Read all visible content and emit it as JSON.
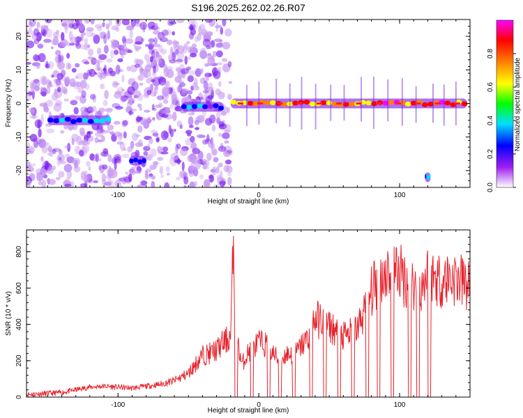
{
  "title": "S196.2025.262.02.26.R07",
  "chart_data": [
    {
      "type": "heatmap",
      "xlabel": "Height of straight line (km)",
      "ylabel": "Frequency (Hz)",
      "xlim": [
        -165,
        150
      ],
      "ylim": [
        -25,
        25
      ],
      "xticks": [
        -100,
        0,
        100
      ],
      "yticks": [
        -20,
        -10,
        0,
        10,
        20
      ],
      "colorbar": {
        "label": "Normalized spectral amplitude",
        "range": [
          0,
          1
        ],
        "ticks": [
          "0.0",
          "0.2",
          "0.4",
          "0.6",
          "0.8"
        ],
        "colors": [
          "#ffffff",
          "#a020f0",
          "#0000ff",
          "#00e0ff",
          "#00ff00",
          "#ffff00",
          "#ff8000",
          "#ff0000",
          "#ff00ff"
        ]
      },
      "features": [
        {
          "name": "broadband noise",
          "x_range": [
            -165,
            -20
          ],
          "freq_range": [
            -25,
            25
          ],
          "amplitude": 0.15
        },
        {
          "name": "early tone",
          "x_range": [
            -150,
            -105
          ],
          "freq": -5,
          "amplitude": 0.35
        },
        {
          "name": "low burst",
          "x_range": [
            -92,
            -80
          ],
          "freq": -17,
          "amplitude": 0.35
        },
        {
          "name": "mid tone",
          "x_range": [
            -55,
            -25
          ],
          "freq": -1,
          "amplitude": 0.3
        },
        {
          "name": "main carrier",
          "x_range": [
            -20,
            148
          ],
          "freq": 0,
          "amplitude": 0.9
        },
        {
          "name": "spur",
          "x_range": [
            118,
            122
          ],
          "freq": -22,
          "amplitude": 0.4
        }
      ]
    },
    {
      "type": "line",
      "xlabel": "Height of straight line (km)",
      "ylabel": "SNR (10 * v/v)",
      "xlim": [
        -165,
        150
      ],
      "ylim": [
        0,
        920
      ],
      "xticks": [
        -100,
        0,
        100
      ],
      "yticks": [
        0,
        200,
        400,
        600,
        800
      ],
      "color": "#e8202a",
      "series": [
        {
          "name": "SNR",
          "x": [
            -165,
            -150,
            -140,
            -130,
            -120,
            -110,
            -100,
            -90,
            -80,
            -70,
            -60,
            -50,
            -45,
            -40,
            -35,
            -30,
            -25,
            -20,
            -18,
            -16,
            -14,
            -12,
            -8,
            -4,
            0,
            5,
            10,
            15,
            20,
            25,
            30,
            35,
            40,
            45,
            50,
            55,
            60,
            65,
            70,
            75,
            80,
            85,
            90,
            95,
            100,
            105,
            110,
            115,
            120,
            125,
            130,
            135,
            140,
            145,
            150
          ],
          "y": [
            15,
            20,
            25,
            40,
            55,
            60,
            55,
            50,
            60,
            70,
            90,
            130,
            180,
            230,
            240,
            260,
            300,
            330,
            860,
            300,
            260,
            180,
            240,
            270,
            300,
            290,
            240,
            200,
            240,
            230,
            280,
            330,
            430,
            420,
            390,
            360,
            330,
            350,
            380,
            470,
            580,
            650,
            690,
            710,
            690,
            640,
            620,
            600,
            680,
            660,
            640,
            660,
            650,
            630,
            610
          ]
        }
      ],
      "dropouts": [
        [
          -17,
          -15
        ],
        [
          -6,
          -4
        ],
        [
          6,
          8
        ],
        [
          14,
          16
        ],
        [
          24,
          26
        ],
        [
          36,
          38
        ],
        [
          46,
          48
        ],
        [
          56,
          58
        ],
        [
          66,
          68
        ],
        [
          76,
          78
        ],
        [
          84,
          86
        ],
        [
          94,
          96
        ],
        [
          106,
          108
        ],
        [
          112,
          114
        ],
        [
          120,
          122
        ]
      ]
    }
  ]
}
